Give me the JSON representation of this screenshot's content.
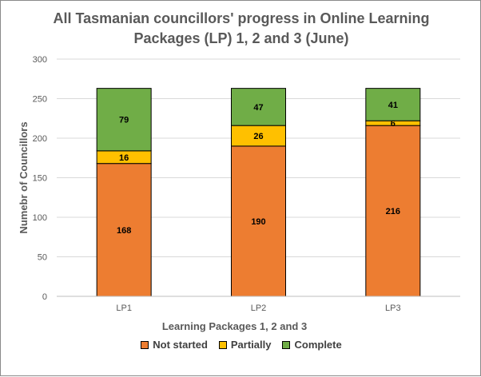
{
  "chart_data": {
    "type": "bar",
    "stacked": true,
    "title_line1": "All Tasmanian councillors' progress in Online Learning",
    "title_line2": "Packages (LP) 1, 2 and 3 (June)",
    "xlabel": "Learning Packages 1, 2 and 3",
    "ylabel": "Numebr of Councillors",
    "ylim": [
      0,
      300
    ],
    "yticks": [
      0,
      50,
      100,
      150,
      200,
      250,
      300
    ],
    "grid": true,
    "legend_position": "bottom",
    "categories": [
      "LP1",
      "LP2",
      "LP3"
    ],
    "series": [
      {
        "name": "Not started",
        "color": "#ed7d31",
        "values": [
          168,
          190,
          216
        ]
      },
      {
        "name": "Partially",
        "color": "#ffc000",
        "values": [
          16,
          26,
          6
        ]
      },
      {
        "name": "Complete",
        "color": "#70ad47",
        "values": [
          79,
          47,
          41
        ]
      }
    ]
  }
}
